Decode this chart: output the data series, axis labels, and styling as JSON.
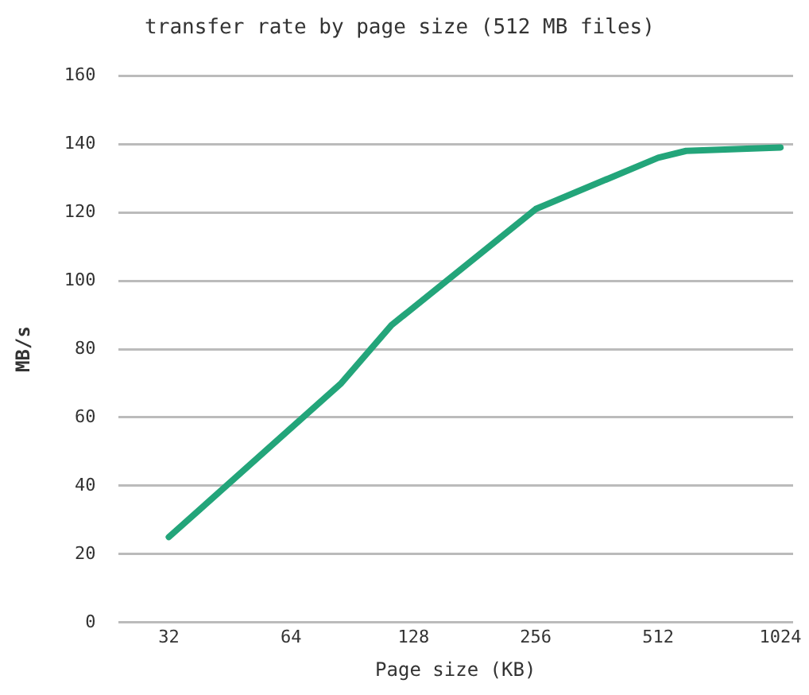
{
  "chart_data": {
    "type": "line",
    "title": "transfer rate by page size (512 MB files)",
    "xlabel": "Page size (KB)",
    "ylabel": "MB/s",
    "x": [
      32,
      85,
      113,
      256,
      512,
      600,
      1024
    ],
    "series": [
      {
        "color": "#23a57a",
        "values": [
          25,
          70,
          87,
          121,
          136,
          138,
          139
        ]
      }
    ],
    "log": "x",
    "xlim": [
      24,
      1100
    ],
    "xticks": [
      32,
      64,
      128,
      256,
      512,
      1024
    ],
    "ylim": [
      0,
      160
    ],
    "yticks": [
      0,
      20,
      40,
      60,
      80,
      100,
      120,
      140,
      160
    ],
    "grid": "y",
    "legend": false,
    "marker": "none",
    "line_style": "solid"
  }
}
